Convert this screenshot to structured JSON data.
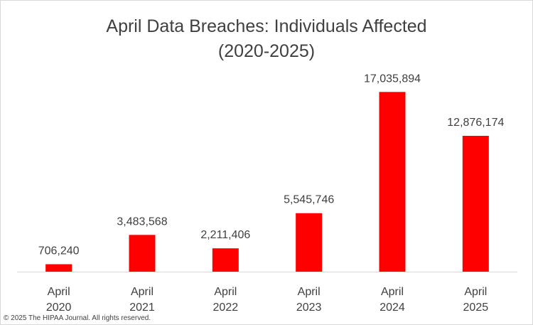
{
  "title": {
    "line1": "April Data Breaches: Individuals Affected",
    "line2": "(2020-2025)"
  },
  "copyright": "© 2025 The HIPAA Journal. All rights reserved.",
  "colors": {
    "bar": "#ff0000",
    "text": "#404040",
    "axis": "#d9d9d9"
  },
  "chart_data": {
    "type": "bar",
    "title": "April Data Breaches: Individuals Affected (2020-2025)",
    "categories": [
      [
        "April",
        "2020"
      ],
      [
        "April",
        "2021"
      ],
      [
        "April",
        "2022"
      ],
      [
        "April",
        "2023"
      ],
      [
        "April",
        "2024"
      ],
      [
        "April",
        "2025"
      ]
    ],
    "values": [
      706240,
      3483568,
      2211406,
      5545746,
      17035894,
      12876174
    ],
    "value_labels": [
      "706,240",
      "3,483,568",
      "2,211,406",
      "5,545,746",
      "17,035,894",
      "12,876,174"
    ],
    "xlabel": "",
    "ylabel": "",
    "ylim": [
      0,
      18000000
    ],
    "grid": false,
    "legend": "none"
  }
}
